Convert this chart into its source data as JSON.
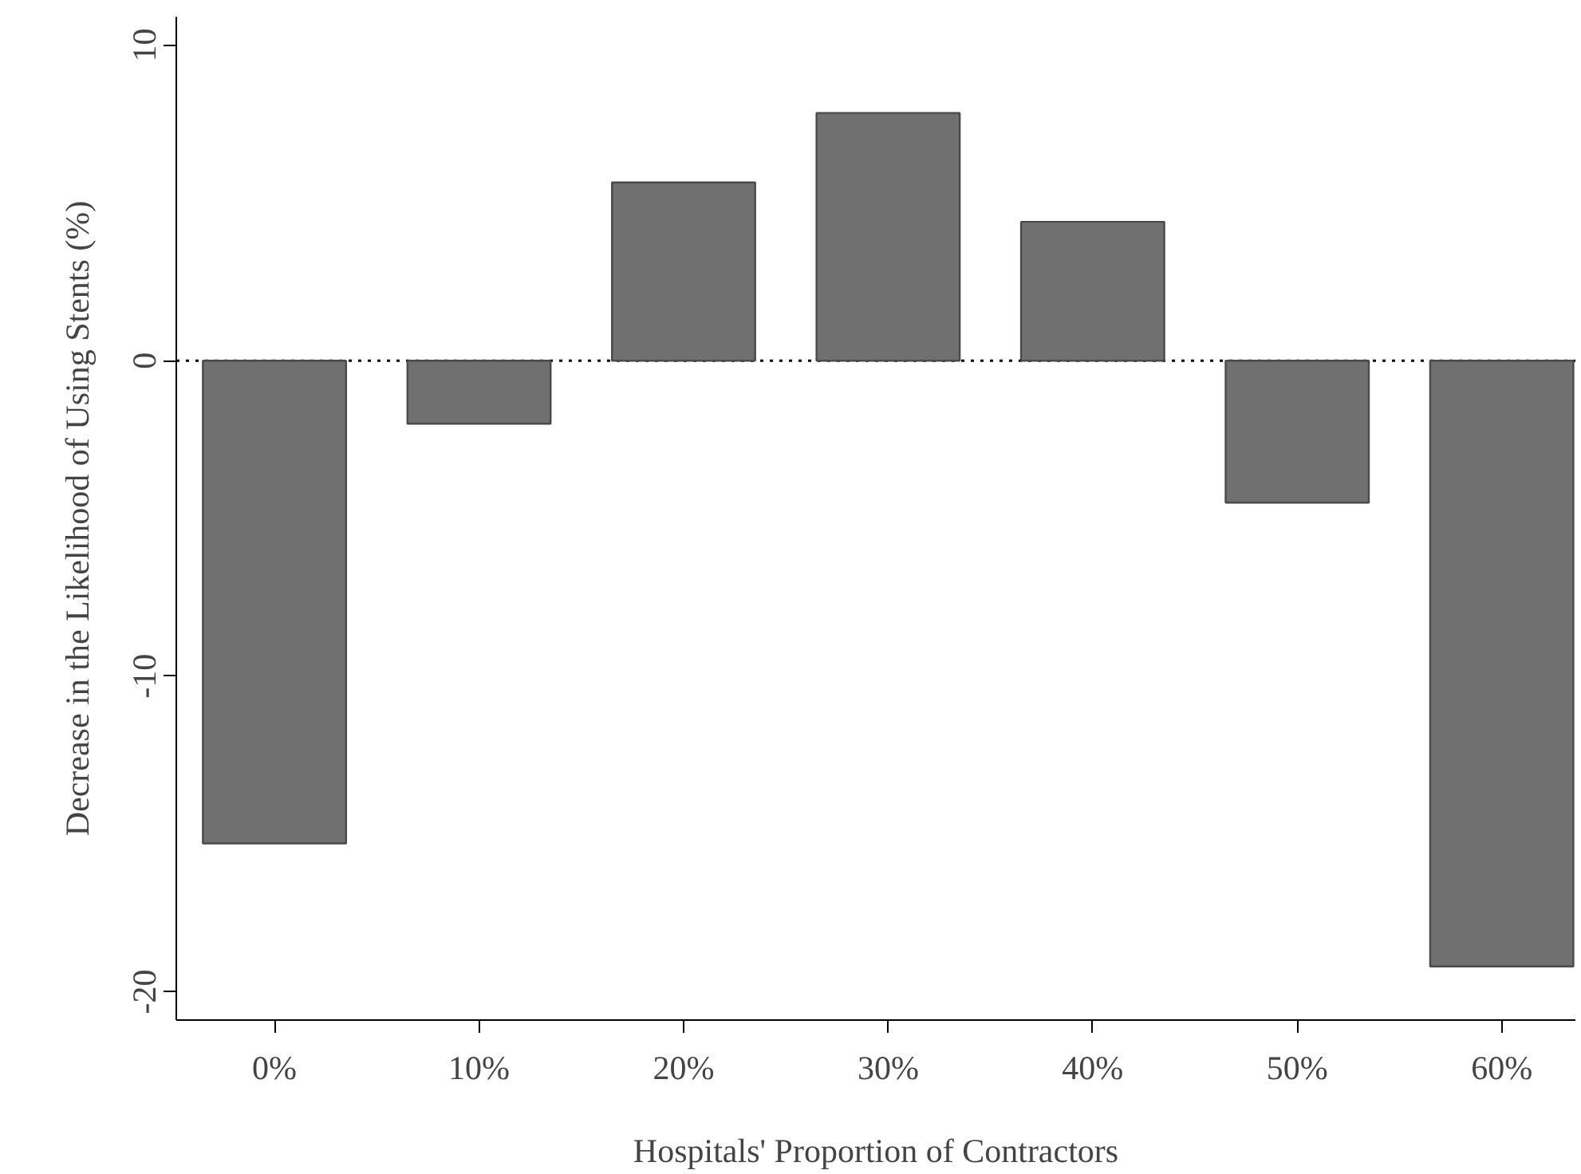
{
  "chart_data": {
    "type": "bar",
    "xlabel": "Hospitals' Proportion of Contractors",
    "ylabel": "Decrease in the Likelihood of Using Stents (%)",
    "categories": [
      "0%",
      "10%",
      "20%",
      "30%",
      "40%",
      "50%",
      "60%"
    ],
    "values": [
      -15.3,
      -2.0,
      5.65,
      7.85,
      4.4,
      -4.5,
      -19.2
    ],
    "color": "#707070",
    "ylim": [
      -20.9,
      10.9
    ],
    "yticks": [
      -20,
      -10,
      0,
      10
    ],
    "grid": false,
    "ref_lines": [
      {
        "axis": "y",
        "value": 0,
        "line_style": "dotted",
        "color": "#000000"
      }
    ]
  }
}
